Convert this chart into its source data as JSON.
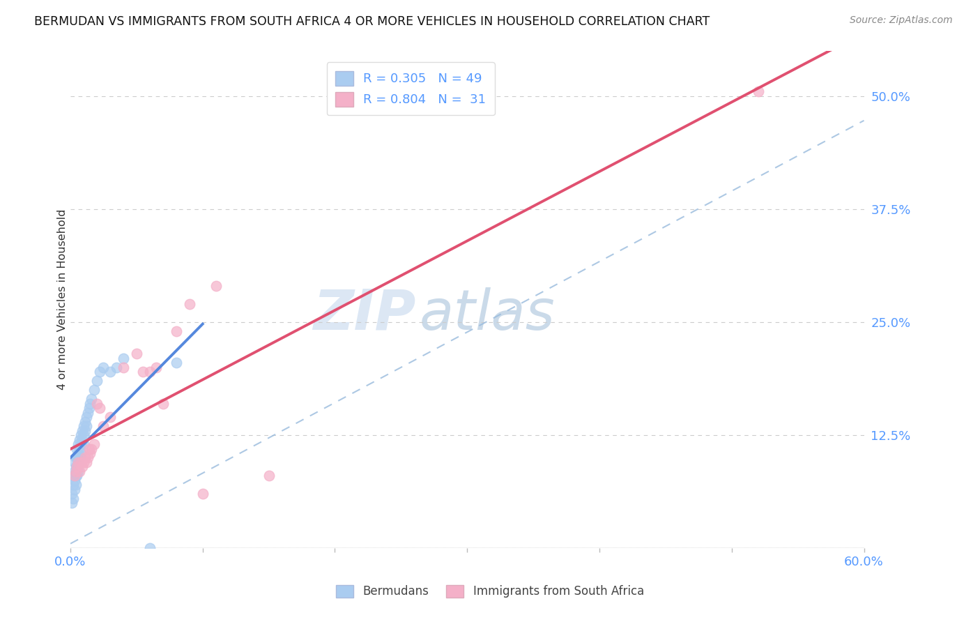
{
  "title": "BERMUDAN VS IMMIGRANTS FROM SOUTH AFRICA 4 OR MORE VEHICLES IN HOUSEHOLD CORRELATION CHART",
  "source": "Source: ZipAtlas.com",
  "ylabel": "4 or more Vehicles in Household",
  "xlim": [
    0.0,
    0.6
  ],
  "ylim": [
    0.0,
    0.55
  ],
  "yticks_right": [
    0.0,
    0.125,
    0.25,
    0.375,
    0.5
  ],
  "ytick_right_labels": [
    "",
    "12.5%",
    "25.0%",
    "37.5%",
    "50.0%"
  ],
  "grid_color": "#cccccc",
  "background_color": "#ffffff",
  "blue_color": "#aaccf0",
  "pink_color": "#f4b0c8",
  "blue_line_color": "#5588dd",
  "pink_line_color": "#e05070",
  "r_blue": 0.305,
  "n_blue": 49,
  "r_pink": 0.804,
  "n_pink": 31,
  "legend_label_blue": "Bermudans",
  "legend_label_pink": "Immigrants from South Africa",
  "watermark_zip": "ZIP",
  "watermark_atlas": "atlas",
  "blue_scatter_x": [
    0.001,
    0.001,
    0.002,
    0.002,
    0.002,
    0.003,
    0.003,
    0.003,
    0.003,
    0.004,
    0.004,
    0.004,
    0.004,
    0.005,
    0.005,
    0.005,
    0.005,
    0.006,
    0.006,
    0.006,
    0.006,
    0.007,
    0.007,
    0.007,
    0.008,
    0.008,
    0.008,
    0.009,
    0.009,
    0.01,
    0.01,
    0.01,
    0.011,
    0.011,
    0.012,
    0.012,
    0.013,
    0.014,
    0.015,
    0.016,
    0.018,
    0.02,
    0.022,
    0.025,
    0.03,
    0.035,
    0.04,
    0.06,
    0.08
  ],
  "blue_scatter_y": [
    0.06,
    0.05,
    0.08,
    0.07,
    0.055,
    0.095,
    0.085,
    0.075,
    0.065,
    0.1,
    0.09,
    0.08,
    0.07,
    0.11,
    0.1,
    0.09,
    0.08,
    0.115,
    0.105,
    0.095,
    0.085,
    0.12,
    0.11,
    0.1,
    0.125,
    0.115,
    0.105,
    0.13,
    0.12,
    0.135,
    0.125,
    0.115,
    0.14,
    0.13,
    0.145,
    0.135,
    0.15,
    0.155,
    0.16,
    0.165,
    0.175,
    0.185,
    0.195,
    0.2,
    0.195,
    0.2,
    0.21,
    0.0,
    0.205
  ],
  "pink_scatter_x": [
    0.003,
    0.004,
    0.005,
    0.006,
    0.007,
    0.008,
    0.009,
    0.01,
    0.011,
    0.012,
    0.013,
    0.014,
    0.015,
    0.016,
    0.018,
    0.02,
    0.022,
    0.025,
    0.03,
    0.04,
    0.05,
    0.055,
    0.06,
    0.065,
    0.07,
    0.08,
    0.09,
    0.1,
    0.11,
    0.15,
    0.52
  ],
  "pink_scatter_y": [
    0.08,
    0.085,
    0.09,
    0.095,
    0.085,
    0.095,
    0.09,
    0.095,
    0.1,
    0.095,
    0.1,
    0.11,
    0.105,
    0.11,
    0.115,
    0.16,
    0.155,
    0.135,
    0.145,
    0.2,
    0.215,
    0.195,
    0.195,
    0.2,
    0.16,
    0.24,
    0.27,
    0.06,
    0.29,
    0.08,
    0.505
  ]
}
